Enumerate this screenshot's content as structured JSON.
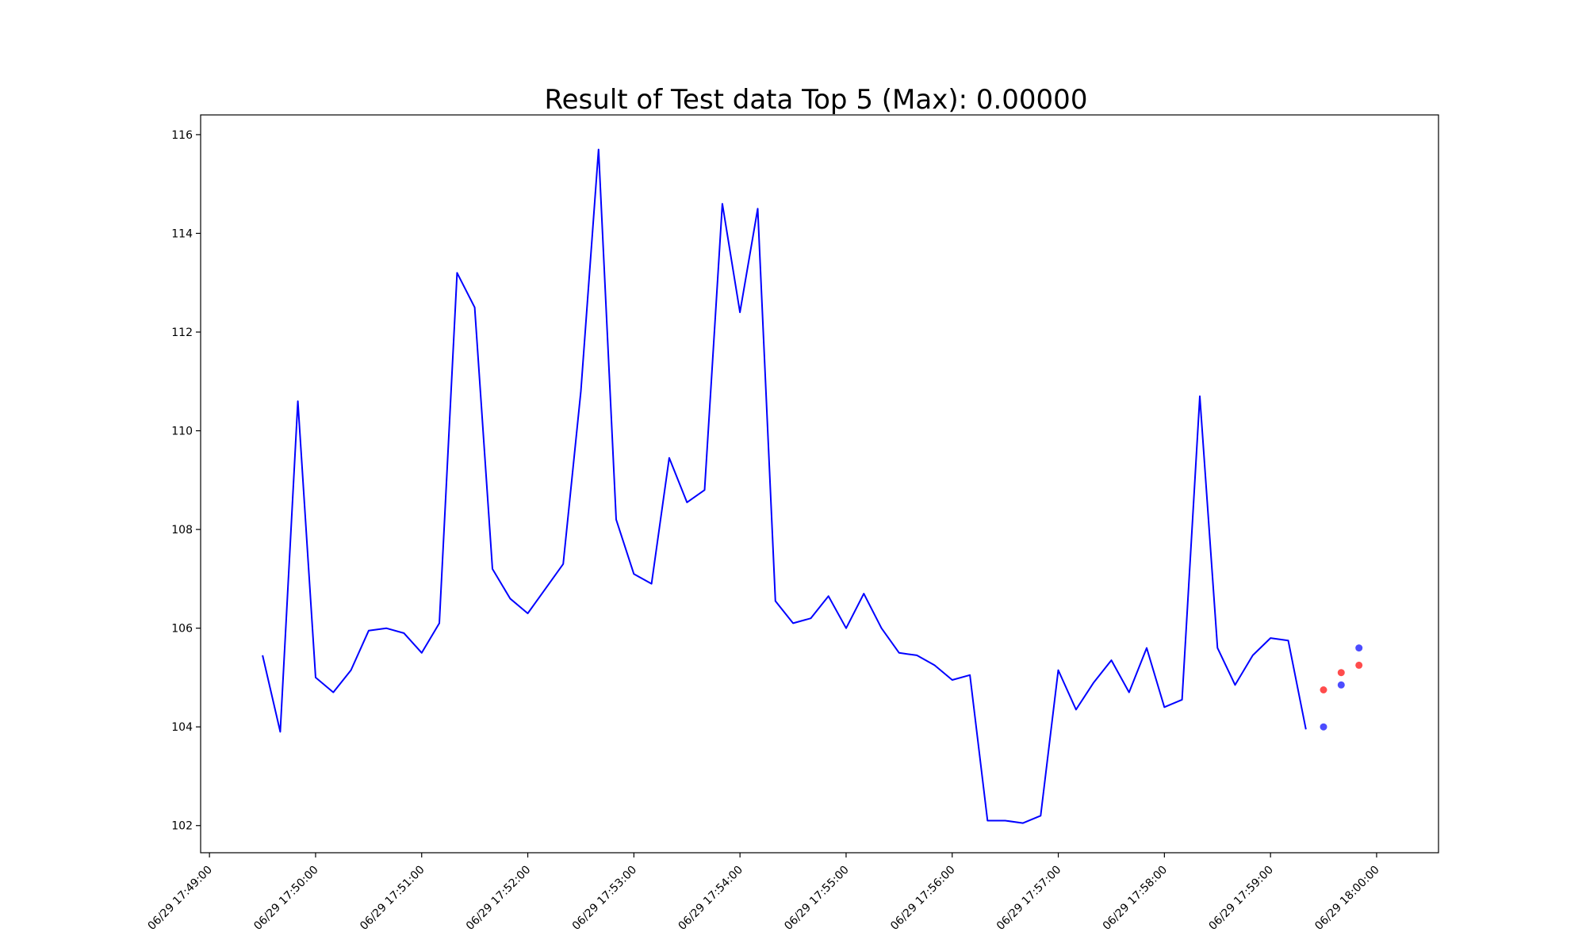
{
  "chart_data": {
    "type": "line",
    "title": "Result of Test data Top 5 (Max): 0.00000",
    "xlabel": "",
    "ylabel": "",
    "x_format": "MM/DD HH:mm:ss",
    "xlim": [
      "06/29 17:48:55",
      "06/29 18:00:35"
    ],
    "ylim": [
      101.45,
      116.4
    ],
    "x_ticks": [
      "06/29 17:49:00",
      "06/29 17:50:00",
      "06/29 17:51:00",
      "06/29 17:52:00",
      "06/29 17:53:00",
      "06/29 17:54:00",
      "06/29 17:55:00",
      "06/29 17:56:00",
      "06/29 17:57:00",
      "06/29 17:58:00",
      "06/29 17:59:00",
      "06/29 18:00:00"
    ],
    "y_ticks": [
      102,
      104,
      106,
      108,
      110,
      112,
      114,
      116
    ],
    "grid": false,
    "legend": "none",
    "series": [
      {
        "type": "line",
        "color": "#0000ff",
        "x": [
          "06/29 17:49:30",
          "06/29 17:49:40",
          "06/29 17:49:50",
          "06/29 17:50:00",
          "06/29 17:50:10",
          "06/29 17:50:20",
          "06/29 17:50:30",
          "06/29 17:50:40",
          "06/29 17:50:50",
          "06/29 17:51:00",
          "06/29 17:51:10",
          "06/29 17:51:20",
          "06/29 17:51:30",
          "06/29 17:51:40",
          "06/29 17:51:50",
          "06/29 17:52:00",
          "06/29 17:52:10",
          "06/29 17:52:20",
          "06/29 17:52:30",
          "06/29 17:52:40",
          "06/29 17:52:50",
          "06/29 17:53:00",
          "06/29 17:53:10",
          "06/29 17:53:20",
          "06/29 17:53:30",
          "06/29 17:53:40",
          "06/29 17:53:50",
          "06/29 17:54:00",
          "06/29 17:54:10",
          "06/29 17:54:20",
          "06/29 17:54:30",
          "06/29 17:54:40",
          "06/29 17:54:50",
          "06/29 17:55:00",
          "06/29 17:55:10",
          "06/29 17:55:20",
          "06/29 17:55:30",
          "06/29 17:55:40",
          "06/29 17:55:50",
          "06/29 17:56:00",
          "06/29 17:56:10",
          "06/29 17:56:20",
          "06/29 17:56:30",
          "06/29 17:56:40",
          "06/29 17:56:50",
          "06/29 17:57:00",
          "06/29 17:57:10",
          "06/29 17:57:20",
          "06/29 17:57:30",
          "06/29 17:57:40",
          "06/29 17:57:50",
          "06/29 17:58:00",
          "06/29 17:58:10",
          "06/29 17:58:20",
          "06/29 17:58:30",
          "06/29 17:58:40",
          "06/29 17:58:50",
          "06/29 17:59:00",
          "06/29 17:59:10",
          "06/29 17:59:20"
        ],
        "y": [
          105.45,
          103.9,
          110.6,
          105.0,
          104.7,
          105.15,
          105.95,
          106.0,
          105.9,
          105.5,
          106.1,
          113.2,
          112.5,
          107.2,
          106.6,
          106.3,
          106.8,
          107.3,
          110.8,
          115.7,
          108.2,
          107.1,
          106.9,
          109.45,
          108.55,
          108.8,
          114.6,
          112.4,
          114.5,
          106.55,
          106.1,
          106.2,
          106.65,
          106.0,
          106.7,
          106.0,
          105.5,
          105.45,
          105.25,
          104.95,
          105.05,
          102.1,
          102.1,
          102.05,
          102.2,
          105.15,
          104.35,
          104.9,
          105.35,
          104.7,
          105.6,
          104.4,
          104.55,
          110.7,
          105.6,
          104.85,
          105.45,
          105.8,
          105.75,
          103.95
        ]
      },
      {
        "type": "scatter",
        "color": "#ff0000",
        "x": [
          "06/29 17:59:30",
          "06/29 17:59:40",
          "06/29 17:59:50"
        ],
        "y": [
          104.75,
          105.1,
          105.25
        ]
      },
      {
        "type": "scatter",
        "color": "#0000ff",
        "x": [
          "06/29 17:59:30",
          "06/29 17:59:40",
          "06/29 17:59:50"
        ],
        "y": [
          104.0,
          104.85,
          105.6
        ]
      }
    ]
  }
}
